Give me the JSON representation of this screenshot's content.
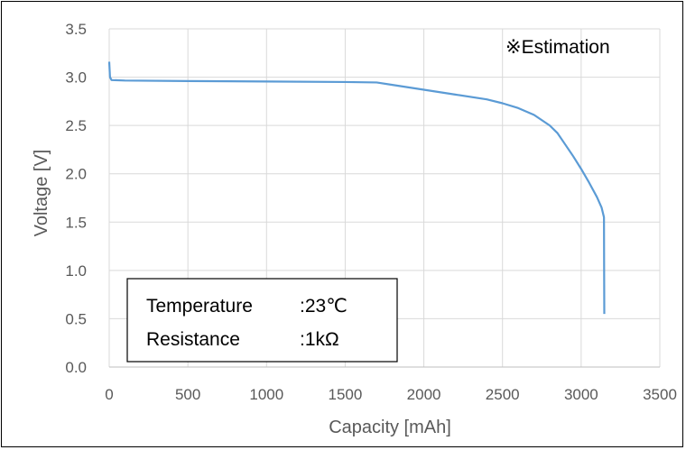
{
  "chart_data": {
    "type": "line",
    "xlabel": "Capacity [mAh]",
    "ylabel": "Voltage [V]",
    "xlim": [
      0,
      3500
    ],
    "ylim": [
      0,
      3.5
    ],
    "x_ticks": [
      0,
      500,
      1000,
      1500,
      2000,
      2500,
      3000,
      3500
    ],
    "y_ticks": [
      "0.0",
      "0.5",
      "1.0",
      "1.5",
      "2.0",
      "2.5",
      "3.0",
      "3.5"
    ],
    "grid": true,
    "series": [
      {
        "color": "#5b9bd5",
        "points": [
          [
            0,
            3.16
          ],
          [
            5,
            3.0
          ],
          [
            15,
            2.97
          ],
          [
            100,
            2.965
          ],
          [
            500,
            2.96
          ],
          [
            1000,
            2.955
          ],
          [
            1500,
            2.95
          ],
          [
            1700,
            2.945
          ],
          [
            1800,
            2.92
          ],
          [
            2000,
            2.87
          ],
          [
            2200,
            2.82
          ],
          [
            2400,
            2.77
          ],
          [
            2500,
            2.73
          ],
          [
            2600,
            2.68
          ],
          [
            2700,
            2.61
          ],
          [
            2800,
            2.5
          ],
          [
            2850,
            2.42
          ],
          [
            2900,
            2.3
          ],
          [
            2950,
            2.18
          ],
          [
            3000,
            2.05
          ],
          [
            3050,
            1.91
          ],
          [
            3100,
            1.76
          ],
          [
            3130,
            1.65
          ],
          [
            3145,
            1.55
          ],
          [
            3146,
            1.0
          ],
          [
            3147,
            0.55
          ]
        ]
      }
    ],
    "annotation": "※Estimation",
    "info_box": {
      "row1_label": "Temperature",
      "row1_value": ":23℃",
      "row2_label": "Resistance",
      "row2_value": ":1kΩ"
    }
  }
}
